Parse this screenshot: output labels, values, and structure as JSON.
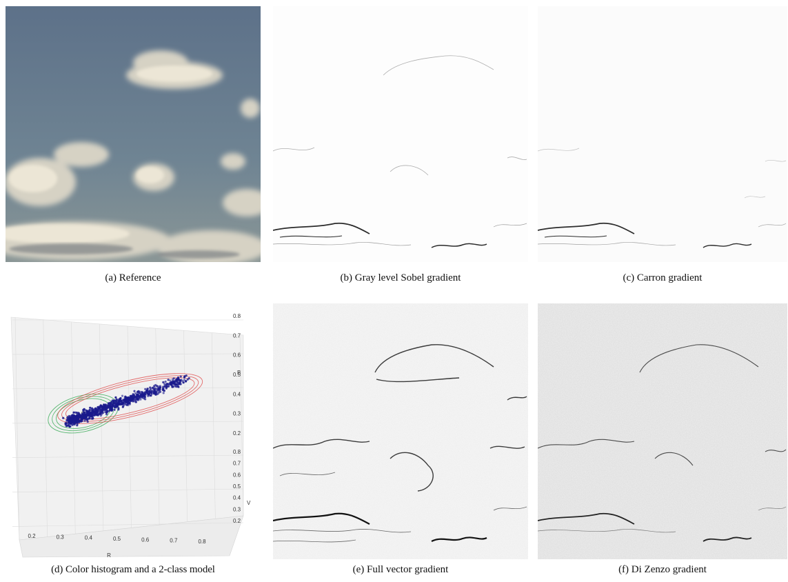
{
  "figure": {
    "panels": [
      {
        "id": "a",
        "caption": "(a) Reference"
      },
      {
        "id": "b",
        "caption": "(b) Gray level Sobel gradient"
      },
      {
        "id": "c",
        "caption": "(c) Carron gradient"
      },
      {
        "id": "d",
        "caption": "(d) Color histogram and a 2-class model"
      },
      {
        "id": "e",
        "caption": "(e) Full vector gradient"
      },
      {
        "id": "f",
        "caption": "(f) Di Zenzo gradient"
      }
    ]
  },
  "chart_data": {
    "type": "scatter",
    "title": "",
    "xlabel": "R",
    "ylabel": "V",
    "zlabel": "B",
    "x_ticks": [
      "0.2",
      "0.3",
      "0.4",
      "0.5",
      "0.6",
      "0.7",
      "0.8"
    ],
    "y_ticks": [
      "0.2",
      "0.3",
      "0.4",
      "0.5",
      "0.6",
      "0.7",
      "0.8"
    ],
    "z_ticks": [
      "0.2",
      "0.3",
      "0.4",
      "0.5",
      "0.6",
      "0.7",
      "0.8"
    ],
    "xlim": [
      0.2,
      0.8
    ],
    "ylim": [
      0.2,
      0.8
    ],
    "zlim": [
      0.2,
      0.8
    ],
    "point_color": "#1a1a8c",
    "model_colors": [
      "#2fa84f",
      "#e04848"
    ],
    "clusters": [
      {
        "center": [
          0.32,
          0.34,
          0.36
        ],
        "color": "#2fa84f"
      },
      {
        "center": [
          0.48,
          0.46,
          0.46
        ],
        "color": "#e04848"
      }
    ]
  }
}
